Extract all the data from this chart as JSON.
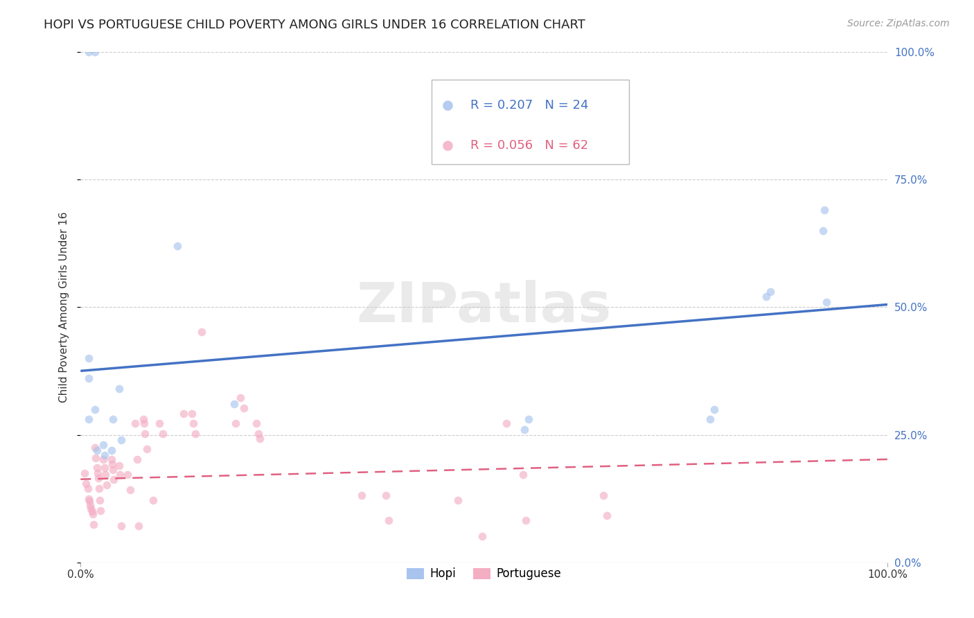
{
  "title": "HOPI VS PORTUGUESE CHILD POVERTY AMONG GIRLS UNDER 16 CORRELATION CHART",
  "source": "Source: ZipAtlas.com",
  "ylabel": "Child Poverty Among Girls Under 16",
  "xlim": [
    0,
    1.0
  ],
  "ylim": [
    0,
    1.0
  ],
  "ytick_vals": [
    0.0,
    0.25,
    0.5,
    0.75,
    1.0
  ],
  "ytick_labels": [
    "0.0%",
    "25.0%",
    "50.0%",
    "75.0%",
    "100.0%"
  ],
  "xtick_vals": [
    0.0,
    1.0
  ],
  "xtick_labels": [
    "0.0%",
    "100.0%"
  ],
  "hopi_R": "0.207",
  "hopi_N": "24",
  "port_R": "0.056",
  "port_N": "62",
  "hopi_color": "#a8c4ee",
  "port_color": "#f4aec4",
  "hopi_line_color": "#4472c4",
  "port_line_color": "#e06080",
  "background_color": "#ffffff",
  "grid_color": "#cccccc",
  "watermark": "ZIPatlas",
  "hopi_x": [
    0.01,
    0.018,
    0.01,
    0.01,
    0.01,
    0.018,
    0.02,
    0.028,
    0.03,
    0.038,
    0.04,
    0.048,
    0.05,
    0.12,
    0.19,
    0.55,
    0.555,
    0.78,
    0.785,
    0.85,
    0.855,
    0.92,
    0.922,
    0.924
  ],
  "hopi_y": [
    1.0,
    1.0,
    0.4,
    0.36,
    0.28,
    0.3,
    0.22,
    0.23,
    0.21,
    0.22,
    0.28,
    0.34,
    0.24,
    0.62,
    0.31,
    0.26,
    0.28,
    0.28,
    0.3,
    0.52,
    0.53,
    0.65,
    0.69,
    0.51
  ],
  "port_x": [
    0.005,
    0.007,
    0.009,
    0.01,
    0.011,
    0.012,
    0.013,
    0.014,
    0.015,
    0.016,
    0.018,
    0.019,
    0.02,
    0.021,
    0.022,
    0.023,
    0.024,
    0.025,
    0.028,
    0.03,
    0.031,
    0.032,
    0.038,
    0.039,
    0.04,
    0.041,
    0.048,
    0.049,
    0.05,
    0.058,
    0.062,
    0.068,
    0.07,
    0.072,
    0.078,
    0.079,
    0.08,
    0.082,
    0.09,
    0.098,
    0.102,
    0.128,
    0.138,
    0.14,
    0.142,
    0.15,
    0.192,
    0.198,
    0.202,
    0.218,
    0.22,
    0.222,
    0.348,
    0.378,
    0.382,
    0.468,
    0.498,
    0.528,
    0.548,
    0.552,
    0.648,
    0.652
  ],
  "port_y": [
    0.175,
    0.155,
    0.145,
    0.125,
    0.12,
    0.112,
    0.105,
    0.1,
    0.095,
    0.075,
    0.225,
    0.205,
    0.185,
    0.175,
    0.165,
    0.145,
    0.122,
    0.102,
    0.202,
    0.185,
    0.172,
    0.152,
    0.202,
    0.192,
    0.182,
    0.162,
    0.19,
    0.172,
    0.072,
    0.172,
    0.142,
    0.272,
    0.202,
    0.072,
    0.28,
    0.272,
    0.252,
    0.222,
    0.122,
    0.272,
    0.252,
    0.292,
    0.292,
    0.272,
    0.252,
    0.452,
    0.272,
    0.322,
    0.302,
    0.272,
    0.252,
    0.242,
    0.132,
    0.132,
    0.082,
    0.122,
    0.052,
    0.272,
    0.172,
    0.082,
    0.132,
    0.092
  ],
  "title_fontsize": 13,
  "axis_label_fontsize": 11,
  "tick_fontsize": 11,
  "legend_fontsize": 13,
  "source_fontsize": 10,
  "marker_size": 70,
  "marker_alpha": 0.65,
  "hopi_trendline_x": [
    0.0,
    1.0
  ],
  "hopi_trendline_y": [
    0.375,
    0.505
  ],
  "port_trendline_x": [
    0.0,
    1.0
  ],
  "port_trendline_y": [
    0.163,
    0.202
  ]
}
